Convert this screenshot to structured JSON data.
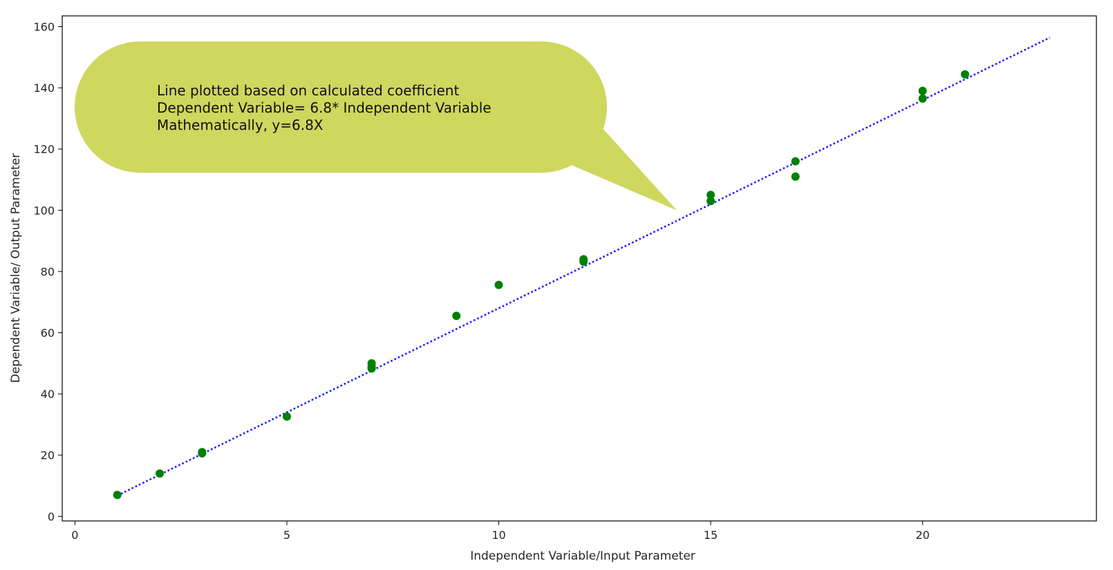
{
  "chart_data": {
    "type": "scatter",
    "title": "",
    "xlabel": "Independent Variable/Input Parameter",
    "ylabel": "Dependent Variable/ Output Parameter",
    "xlim": [
      -0.3,
      24.1
    ],
    "ylim": [
      -1.5,
      163.5
    ],
    "xticks": [
      0,
      5,
      10,
      15,
      20
    ],
    "yticks": [
      0,
      20,
      40,
      60,
      80,
      100,
      120,
      140,
      160
    ],
    "grid": false,
    "legend": "none",
    "series": [
      {
        "kind": "points",
        "color": "#008000",
        "x": [
          1,
          2,
          3,
          3,
          5,
          7,
          7,
          7,
          9,
          10,
          12,
          12,
          15,
          15,
          17,
          17,
          20,
          20,
          21
        ],
        "y": [
          7,
          14,
          21,
          20.6,
          32.6,
          50,
          48.9,
          48.3,
          65.5,
          75.6,
          84,
          83.2,
          105,
          103,
          116,
          111,
          139,
          136.5,
          144.4
        ]
      },
      {
        "kind": "line",
        "style": "dotted",
        "color": "#1a1aff",
        "slope": 6.8,
        "x": [
          1,
          23
        ],
        "y": [
          6.8,
          156.4
        ]
      }
    ],
    "annotation": {
      "lines": [
        "Line plotted based on calculated coefficient",
        "Dependent Variable= 6.8* Independent Variable",
        "Mathematically, y=6.8X"
      ],
      "color": "#cfd75e",
      "pointer_to": [
        14.2,
        100
      ]
    }
  }
}
